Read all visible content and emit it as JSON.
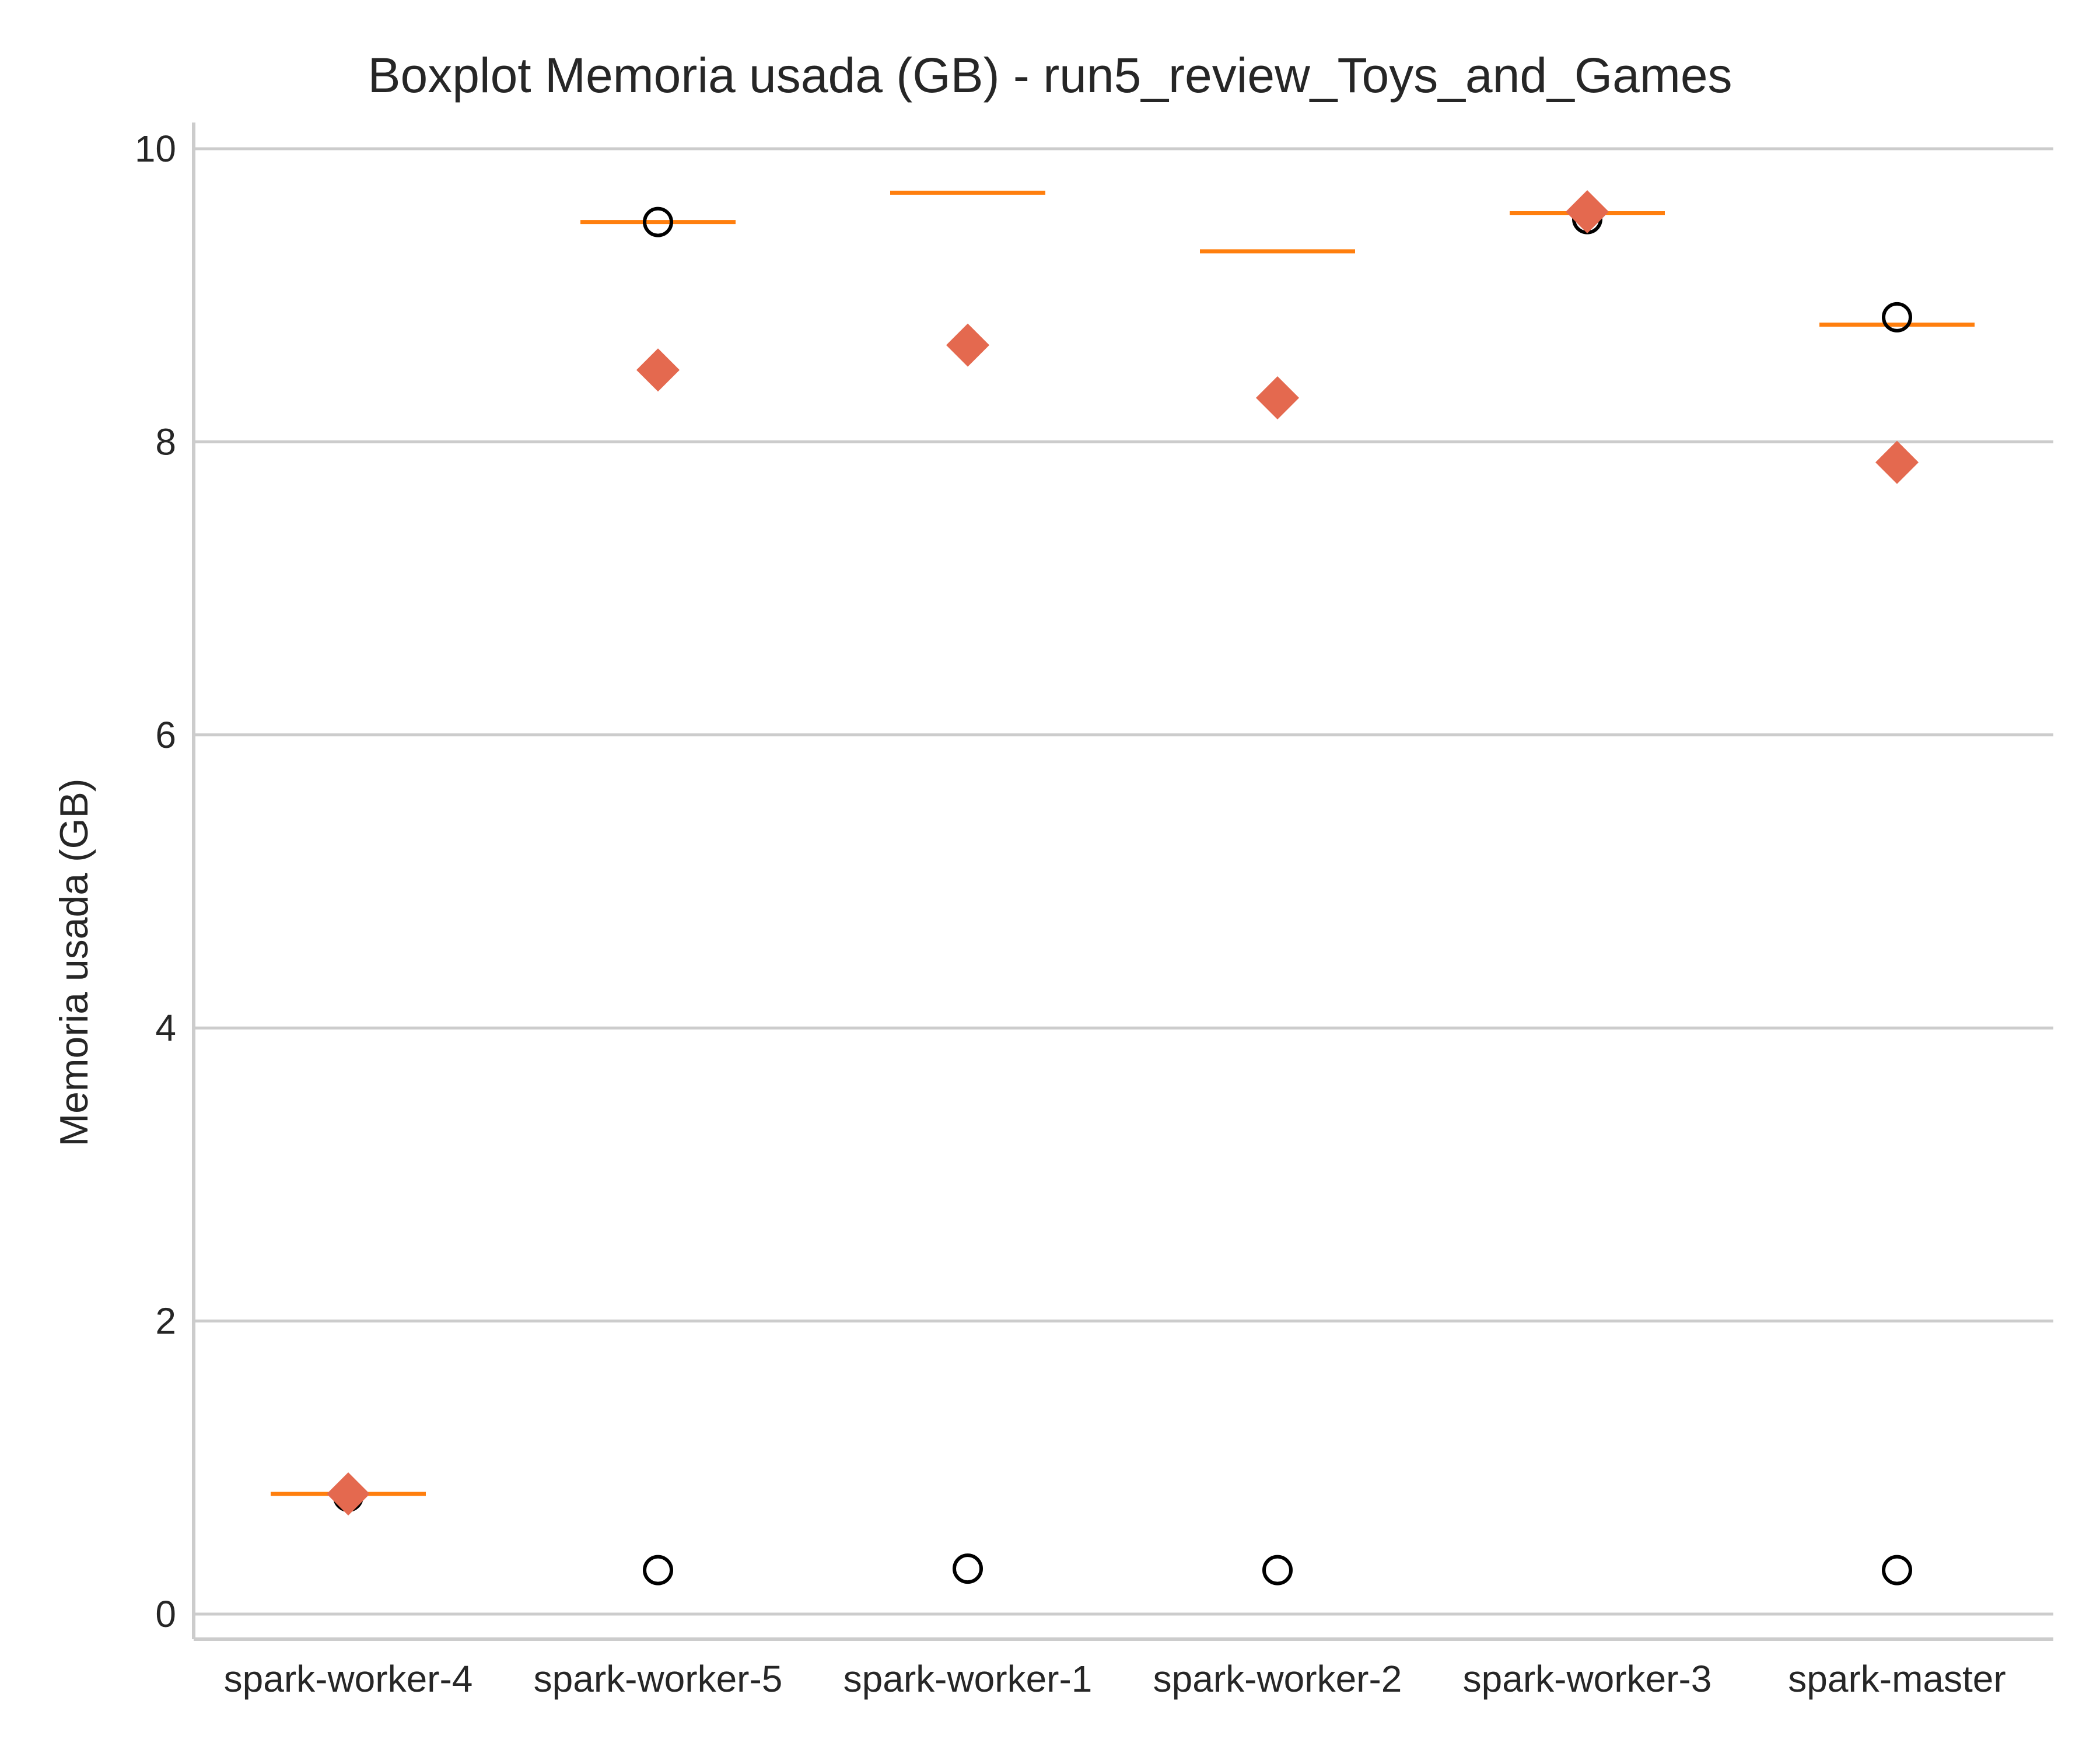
{
  "chart_data": {
    "type": "box",
    "title": "Boxplot Memoria usada (GB) - run5_review_Toys_and_Games",
    "xlabel": "",
    "ylabel": "Memoria usada (GB)",
    "ylim": [
      -0.15,
      10.2
    ],
    "yticks": [
      0,
      2,
      4,
      6,
      8,
      10
    ],
    "grid": "horizontal",
    "categories": [
      "spark-worker-4",
      "spark-worker-5",
      "spark-worker-1",
      "spark-worker-2",
      "spark-worker-3",
      "spark-master"
    ],
    "medians": [
      0.82,
      9.5,
      9.7,
      9.3,
      9.56,
      8.8
    ],
    "means": [
      0.82,
      8.49,
      8.66,
      8.3,
      9.57,
      7.86
    ],
    "outliers": [
      [
        0.8
      ],
      [
        9.5,
        0.3
      ],
      [
        0.31
      ],
      [
        0.3
      ],
      [
        9.52
      ],
      [
        8.85,
        0.3
      ]
    ],
    "colors": {
      "median": "#ff7f0e",
      "mean": "#e4694f",
      "outlier_edge": "#000000",
      "grid": "#cccccc",
      "text": "#262626"
    }
  }
}
